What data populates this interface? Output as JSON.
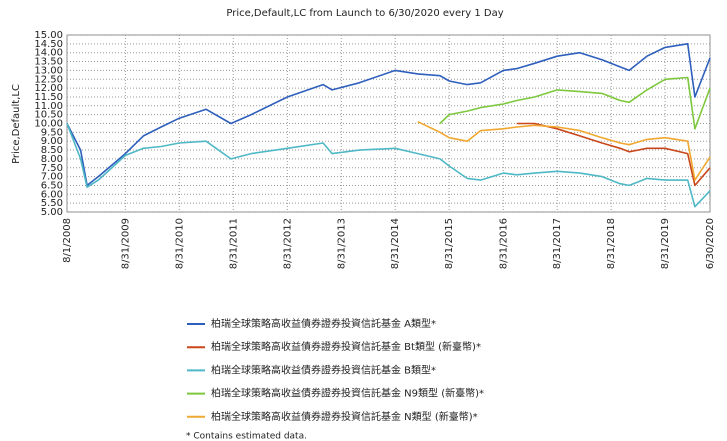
{
  "chart_data": {
    "type": "line",
    "title": "Price,Default,LC from Launch to 6/30/2020 every 1 Day",
    "ylabel": "Price,Default,LC",
    "footnote": "* Contains estimated data.",
    "grid": true,
    "x": [
      "8/1/2008",
      "11/1/2008",
      "12/15/2008",
      "3/1/2009",
      "8/31/2009",
      "12/31/2009",
      "4/30/2010",
      "8/31/2010",
      "2/28/2011",
      "8/15/2011",
      "12/31/2011",
      "8/31/2012",
      "4/30/2013",
      "6/30/2013",
      "12/31/2013",
      "8/31/2014",
      "1/31/2015",
      "6/30/2015",
      "8/31/2015",
      "12/31/2015",
      "3/31/2016",
      "8/31/2016",
      "11/30/2016",
      "3/31/2017",
      "8/31/2017",
      "1/31/2018",
      "6/30/2018",
      "10/31/2018",
      "12/31/2018",
      "4/30/2019",
      "8/31/2019",
      "1/31/2020",
      "3/20/2020",
      "6/30/2020"
    ],
    "xlim": [
      "8/1/2008",
      "6/30/2020"
    ],
    "xticks": [
      "8/1/2008",
      "8/31/2009",
      "8/31/2010",
      "8/31/2011",
      "8/31/2012",
      "8/31/2013",
      "8/31/2014",
      "8/31/2015",
      "8/31/2016",
      "8/31/2017",
      "8/31/2018",
      "8/31/2019",
      "6/30/2020"
    ],
    "ylim": [
      5,
      15
    ],
    "yticks": [
      {
        "value": 5,
        "label": "5.00"
      },
      {
        "value": 5.5,
        "label": "5.50"
      },
      {
        "value": 6,
        "label": "6.00"
      },
      {
        "value": 6.5,
        "label": "6.50"
      },
      {
        "value": 7,
        "label": "7.00"
      },
      {
        "value": 7.5,
        "label": "7.50"
      },
      {
        "value": 8,
        "label": "8.00"
      },
      {
        "value": 8.5,
        "label": "8.50"
      },
      {
        "value": 9,
        "label": "9.00"
      },
      {
        "value": 9.5,
        "label": "9.50"
      },
      {
        "value": 10,
        "label": "10.00"
      },
      {
        "value": 10.5,
        "label": "10.50"
      },
      {
        "value": 11,
        "label": "11.00"
      },
      {
        "value": 11.5,
        "label": "11.50"
      },
      {
        "value": 12,
        "label": "12.00"
      },
      {
        "value": 12.5,
        "label": "12.50"
      },
      {
        "value": 13,
        "label": "13.00"
      },
      {
        "value": 13.5,
        "label": "13.50"
      },
      {
        "value": 14,
        "label": "14.00"
      },
      {
        "value": 14.5,
        "label": "14.50"
      },
      {
        "value": 15,
        "label": "15.00"
      }
    ],
    "series": [
      {
        "name": "柏瑞全球策略高收益債券證券投資信託基金 A類型*",
        "color": "#2e5fbd",
        "values": [
          10.0,
          8.5,
          6.5,
          7.0,
          8.3,
          9.3,
          9.8,
          10.3,
          10.8,
          10.0,
          10.5,
          11.5,
          12.2,
          11.9,
          12.3,
          13.0,
          12.8,
          12.7,
          12.4,
          12.2,
          12.3,
          13.0,
          13.1,
          13.4,
          13.8,
          14.0,
          13.6,
          13.2,
          13.0,
          13.8,
          14.3,
          14.5,
          11.5,
          13.7
        ]
      },
      {
        "name": "柏瑞全球策略高收益債券證券投資信託基金 Bt類型 (新臺幣)*",
        "color": "#c9471b",
        "values": [
          null,
          null,
          null,
          null,
          null,
          null,
          null,
          null,
          null,
          null,
          null,
          null,
          null,
          null,
          null,
          null,
          null,
          null,
          null,
          null,
          null,
          null,
          10.0,
          10.0,
          9.7,
          9.3,
          8.9,
          8.6,
          8.4,
          8.6,
          8.6,
          8.3,
          6.5,
          7.5
        ]
      },
      {
        "name": "柏瑞全球策略高收益債券證券投資信託基金 B類型*",
        "color": "#4fb8c6",
        "values": [
          10.0,
          8.0,
          6.4,
          6.8,
          8.2,
          8.6,
          8.7,
          8.9,
          9.0,
          8.0,
          8.3,
          8.6,
          8.9,
          8.3,
          8.5,
          8.6,
          8.3,
          8.0,
          7.6,
          6.9,
          6.8,
          7.2,
          7.1,
          7.2,
          7.3,
          7.2,
          7.0,
          6.6,
          6.5,
          6.9,
          6.8,
          6.8,
          5.3,
          6.2
        ]
      },
      {
        "name": "柏瑞全球策略高收益債券證券投資信託基金 N9類型 (新臺幣)*",
        "color": "#7dc83c",
        "values": [
          null,
          null,
          null,
          null,
          null,
          null,
          null,
          null,
          null,
          null,
          null,
          null,
          null,
          null,
          null,
          null,
          null,
          10.0,
          10.5,
          10.7,
          10.9,
          11.1,
          11.3,
          11.5,
          11.9,
          11.8,
          11.7,
          11.3,
          11.2,
          11.9,
          12.5,
          12.6,
          9.7,
          12.0
        ]
      },
      {
        "name": "柏瑞全球策略高收益債券證券投資信託基金 N類型 (新臺幣)*",
        "color": "#f0a830",
        "values": [
          null,
          null,
          null,
          null,
          null,
          null,
          null,
          null,
          null,
          null,
          null,
          null,
          null,
          null,
          null,
          null,
          10.1,
          9.5,
          9.2,
          9.0,
          9.6,
          9.7,
          9.8,
          9.9,
          9.8,
          9.6,
          9.2,
          8.9,
          8.8,
          9.1,
          9.2,
          9.0,
          6.8,
          8.1
        ]
      }
    ]
  }
}
